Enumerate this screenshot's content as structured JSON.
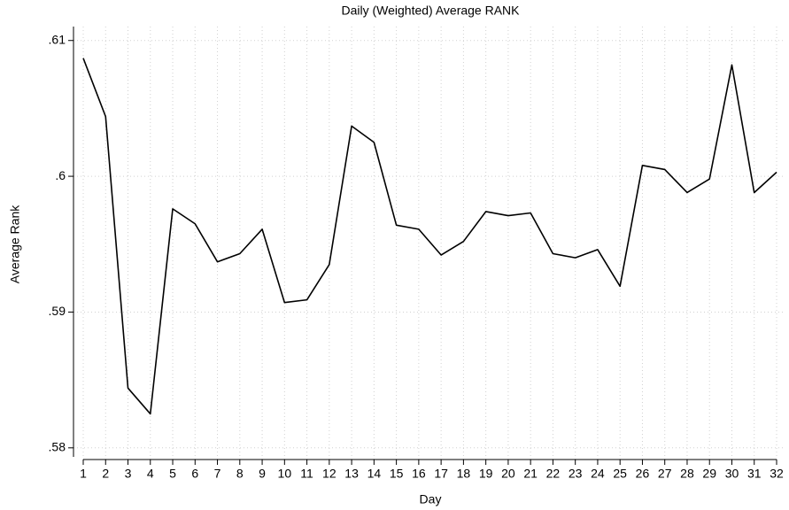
{
  "chart_data": {
    "type": "line",
    "title": "Daily (Weighted) Average RANK",
    "x_label": "Day",
    "y_label": "Average Rank",
    "x": [
      1,
      2,
      3,
      4,
      5,
      6,
      7,
      8,
      9,
      10,
      11,
      12,
      13,
      14,
      15,
      16,
      17,
      18,
      19,
      20,
      21,
      22,
      23,
      24,
      25,
      26,
      27,
      28,
      29,
      30,
      31,
      32
    ],
    "series": [
      {
        "name": "Average Rank",
        "color": "#000000",
        "values": [
          0.6087,
          0.6044,
          0.5844,
          0.5825,
          0.5976,
          0.5965,
          0.5937,
          0.5943,
          0.5961,
          0.5907,
          0.5909,
          0.5935,
          0.6037,
          0.6025,
          0.5964,
          0.5961,
          0.5942,
          0.5952,
          0.5974,
          0.5971,
          0.5973,
          0.5943,
          0.594,
          0.5946,
          0.5919,
          0.6008,
          0.6005,
          0.5988,
          0.5998,
          0.6082,
          0.5988,
          0.6003
        ]
      }
    ],
    "xlim": [
      1,
      32
    ],
    "xticks": [
      1,
      2,
      3,
      4,
      5,
      6,
      7,
      8,
      9,
      10,
      11,
      12,
      13,
      14,
      15,
      16,
      17,
      18,
      19,
      20,
      21,
      22,
      23,
      24,
      25,
      26,
      27,
      28,
      29,
      30,
      31,
      32
    ],
    "ylim": [
      0.5794,
      0.6107
    ],
    "yticks": [
      {
        "value": 0.58,
        "label": ".58"
      },
      {
        "value": 0.59,
        "label": ".59"
      },
      {
        "value": 0.6,
        "label": ".6"
      },
      {
        "value": 0.61,
        "label": ".61"
      }
    ],
    "grid": true
  }
}
